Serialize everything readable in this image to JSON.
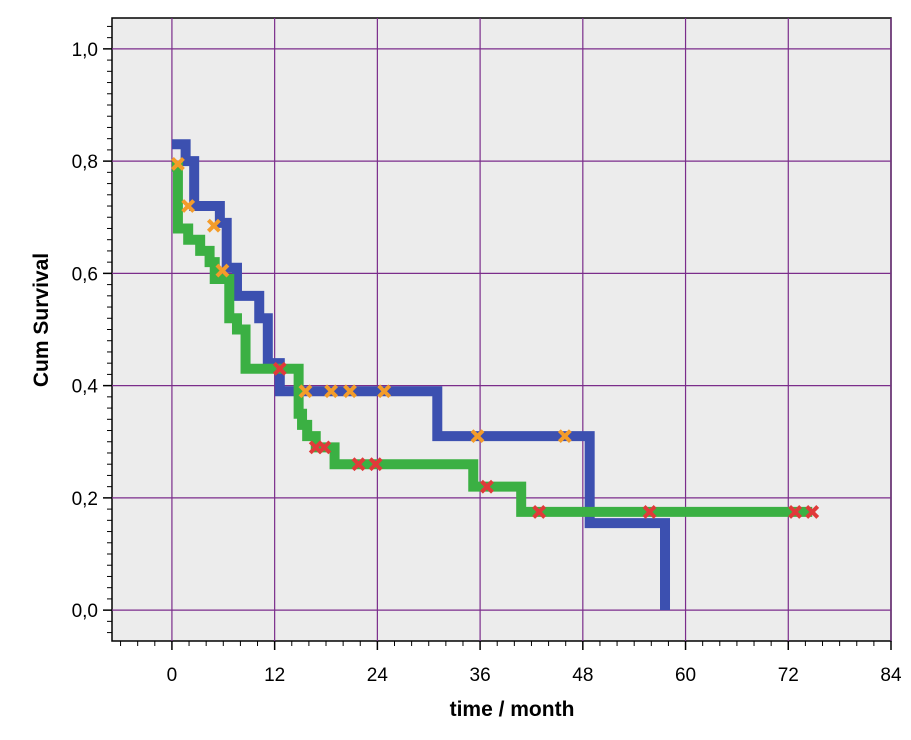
{
  "chart_data": {
    "type": "line",
    "step": true,
    "title": "",
    "xlabel": "time / month",
    "ylabel": "Cum Survival",
    "xlim": [
      -7,
      84
    ],
    "ylim": [
      -0.055,
      1.055
    ],
    "xticks": [
      0,
      12,
      24,
      36,
      48,
      60,
      72,
      84
    ],
    "yticks": [
      0.0,
      0.2,
      0.4,
      0.6,
      0.8,
      1.0
    ],
    "ytick_labels": [
      "0,0",
      "0,2",
      "0,4",
      "0,6",
      "0,8",
      "1,0"
    ],
    "grid": true,
    "colors": {
      "background": "#ececec",
      "grid": "#7b2d8b",
      "censor_orange": "#f39c2a",
      "censor_red": "#e03a3a"
    },
    "series": [
      {
        "color": "#3c50b0",
        "steps": [
          [
            0,
            0.83
          ],
          [
            1.6,
            0.8
          ],
          [
            2.6,
            0.72
          ],
          [
            5.6,
            0.69
          ],
          [
            6.4,
            0.61
          ],
          [
            7.6,
            0.56
          ],
          [
            10.2,
            0.52
          ],
          [
            11.2,
            0.44
          ],
          [
            12.6,
            0.39
          ],
          [
            31.0,
            0.31
          ],
          [
            48.8,
            0.155
          ],
          [
            57.6,
            0.0
          ]
        ],
        "end_x": 57.6,
        "censored": [
          {
            "x": 0.7,
            "y": 0.795,
            "marker": "orange"
          },
          {
            "x": 1.9,
            "y": 0.72,
            "marker": "orange"
          },
          {
            "x": 4.9,
            "y": 0.685,
            "marker": "orange"
          },
          {
            "x": 5.9,
            "y": 0.605,
            "marker": "orange"
          },
          {
            "x": 15.6,
            "y": 0.39,
            "marker": "orange"
          },
          {
            "x": 18.6,
            "y": 0.39,
            "marker": "orange"
          },
          {
            "x": 20.8,
            "y": 0.39,
            "marker": "orange"
          },
          {
            "x": 24.8,
            "y": 0.39,
            "marker": "orange"
          },
          {
            "x": 35.7,
            "y": 0.31,
            "marker": "orange"
          },
          {
            "x": 45.9,
            "y": 0.31,
            "marker": "orange"
          }
        ]
      },
      {
        "color": "#3bb043",
        "steps": [
          [
            0,
            0.79
          ],
          [
            0.7,
            0.68
          ],
          [
            1.9,
            0.66
          ],
          [
            3.3,
            0.64
          ],
          [
            4.4,
            0.62
          ],
          [
            5.0,
            0.59
          ],
          [
            6.7,
            0.52
          ],
          [
            7.6,
            0.5
          ],
          [
            8.6,
            0.43
          ],
          [
            12.2,
            0.43
          ],
          [
            14.8,
            0.35
          ],
          [
            15.2,
            0.33
          ],
          [
            15.8,
            0.31
          ],
          [
            16.8,
            0.29
          ],
          [
            19.0,
            0.26
          ],
          [
            35.2,
            0.22
          ],
          [
            40.8,
            0.175
          ],
          [
            74.8,
            0.175
          ]
        ],
        "end_x": 74.8,
        "censored": [
          {
            "x": 12.6,
            "y": 0.43,
            "marker": "red"
          },
          {
            "x": 16.8,
            "y": 0.29,
            "marker": "red"
          },
          {
            "x": 17.8,
            "y": 0.29,
            "marker": "red"
          },
          {
            "x": 21.8,
            "y": 0.26,
            "marker": "red"
          },
          {
            "x": 23.8,
            "y": 0.26,
            "marker": "red"
          },
          {
            "x": 36.8,
            "y": 0.22,
            "marker": "red"
          },
          {
            "x": 42.9,
            "y": 0.175,
            "marker": "red"
          },
          {
            "x": 55.8,
            "y": 0.175,
            "marker": "red"
          },
          {
            "x": 72.8,
            "y": 0.175,
            "marker": "red"
          },
          {
            "x": 74.8,
            "y": 0.175,
            "marker": "red"
          }
        ]
      }
    ]
  }
}
